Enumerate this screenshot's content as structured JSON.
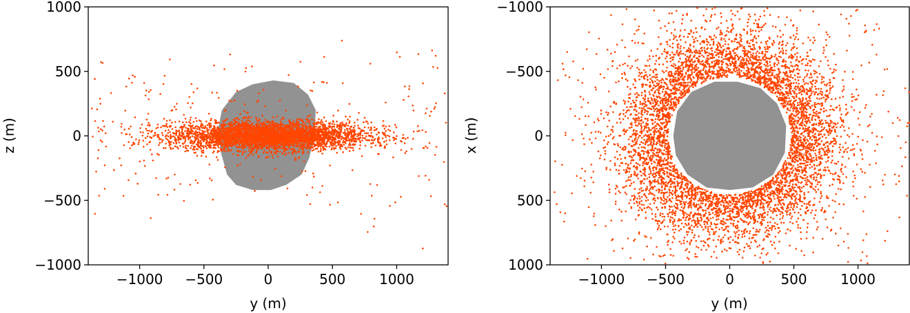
{
  "chart_data": [
    {
      "type": "scatter",
      "xlabel": "y (m)",
      "ylabel": "z (m)",
      "xlim": [
        -1400,
        1400
      ],
      "ylim": [
        -1000,
        1000
      ],
      "y_inverted": false,
      "xticks": [
        -1000,
        -500,
        0,
        500,
        1000
      ],
      "yticks": [
        1000,
        500,
        0,
        -500,
        -1000
      ],
      "xtick_labels": [
        "−1000",
        "−500",
        "0",
        "500",
        "1000"
      ],
      "ytick_labels": [
        "1000",
        "500",
        "0",
        "−500",
        "−1000"
      ],
      "body_outline": [
        [
          -250,
          340
        ],
        [
          -120,
          400
        ],
        [
          40,
          430
        ],
        [
          200,
          410
        ],
        [
          310,
          320
        ],
        [
          370,
          200
        ],
        [
          360,
          0
        ],
        [
          320,
          -170
        ],
        [
          260,
          -300
        ],
        [
          140,
          -380
        ],
        [
          20,
          -420
        ],
        [
          -120,
          -420
        ],
        [
          -250,
          -380
        ],
        [
          -320,
          -300
        ],
        [
          -370,
          -120
        ],
        [
          -390,
          50
        ],
        [
          -360,
          200
        ]
      ],
      "particle_distribution": {
        "shape": "flattened disk",
        "x_spread": 380,
        "y_spread": 55,
        "count": 4200
      },
      "grid": false,
      "colors": {
        "particles": "#ff4500",
        "body": "#929292"
      }
    },
    {
      "type": "scatter",
      "xlabel": "y (m)",
      "ylabel": "x (m)",
      "xlim": [
        -1400,
        1400
      ],
      "ylim": [
        -1000,
        1000
      ],
      "y_inverted": true,
      "xticks": [
        -1000,
        -500,
        0,
        500,
        1000
      ],
      "yticks": [
        -1000,
        -500,
        0,
        500,
        1000
      ],
      "xtick_labels": [
        "−1000",
        "−500",
        "0",
        "500",
        "1000"
      ],
      "ytick_labels": [
        "−1000",
        "−500",
        "0",
        "500",
        "1000"
      ],
      "body_outline": [
        [
          -440,
          0
        ],
        [
          -410,
          -190
        ],
        [
          -300,
          -340
        ],
        [
          -120,
          -420
        ],
        [
          60,
          -420
        ],
        [
          240,
          -370
        ],
        [
          370,
          -250
        ],
        [
          440,
          -80
        ],
        [
          430,
          130
        ],
        [
          340,
          300
        ],
        [
          180,
          400
        ],
        [
          0,
          420
        ],
        [
          -180,
          400
        ],
        [
          -330,
          300
        ],
        [
          -420,
          150
        ]
      ],
      "particle_distribution": {
        "shape": "ring around body",
        "ring_radius": 560,
        "ring_spread": 230,
        "count": 6000
      },
      "grid": false,
      "colors": {
        "particles": "#ff4500",
        "body": "#929292"
      }
    }
  ]
}
